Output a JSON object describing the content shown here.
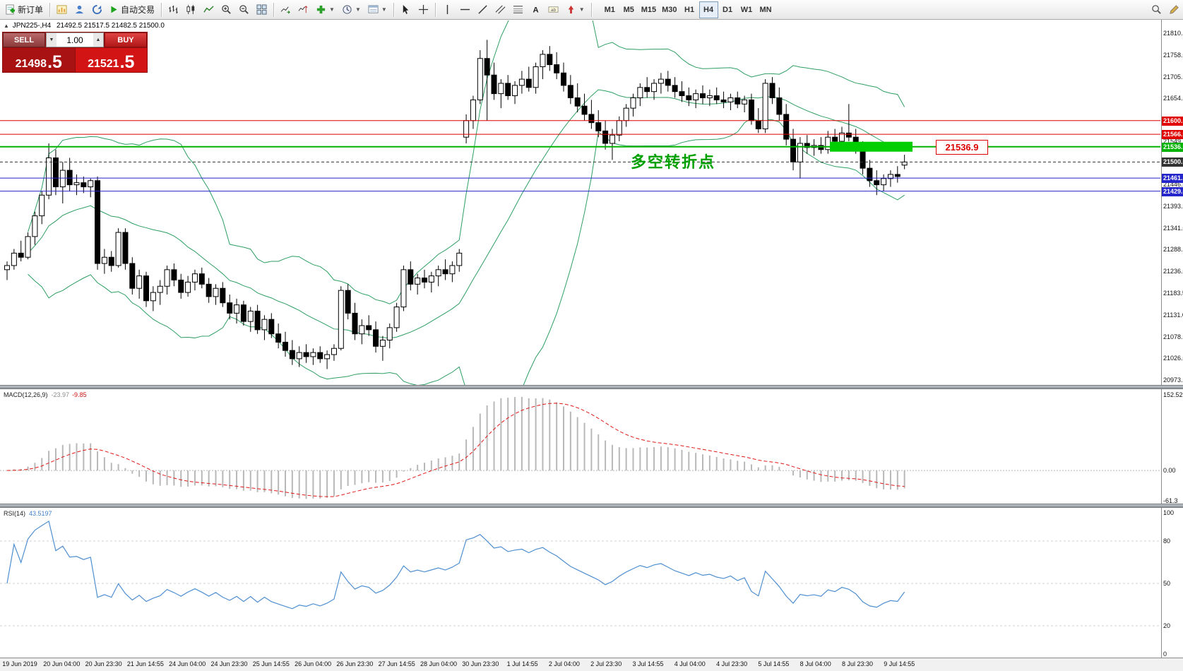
{
  "toolbar": {
    "new_order": "新订单",
    "autotrading": "自动交易",
    "timeframes": [
      "M1",
      "M5",
      "M15",
      "M30",
      "H1",
      "H4",
      "D1",
      "W1",
      "MN"
    ],
    "active_timeframe": "H4"
  },
  "header": {
    "symbol": "JPN225-,H4",
    "ohlc": "21492.5 21517.5 21482.5 21500.0"
  },
  "trade_panel": {
    "sell_label": "SELL",
    "buy_label": "BUY",
    "volume": "1.00",
    "sell_price": "21498",
    "sell_price_big": ".5",
    "buy_price": "21521",
    "buy_price_big": ".5"
  },
  "annotations": {
    "note_text": "多空转折点",
    "note_color": "#00a000",
    "price_tag": "21536.9",
    "highlight_rect": {
      "x": 1175,
      "width": 117,
      "price": 21536.9,
      "height": 14,
      "color": "#00ce00"
    }
  },
  "price_axis": {
    "ticks": [
      "21810.5",
      "21758.0",
      "21705.5",
      "21654.5",
      "21549.5",
      "21446.0",
      "21393.5",
      "21341.0",
      "21288.5",
      "21236.0",
      "21183.5",
      "21131.0",
      "21078.5",
      "21026.0",
      "20973.5"
    ]
  },
  "time_axis": {
    "labels": [
      "19 Jun 2019",
      "20 Jun 04:00",
      "20 Jun 23:30",
      "21 Jun 14:55",
      "24 Jun 04:00",
      "24 Jun 23:30",
      "25 Jun 14:55",
      "26 Jun 04:00",
      "26 Jun 23:30",
      "27 Jun 14:55",
      "28 Jun 04:00",
      "30 Jun 23:30",
      "1 Jul 14:55",
      "2 Jul 04:00",
      "2 Jul 23:30",
      "3 Jul 14:55",
      "4 Jul 04:00",
      "4 Jul 23:30",
      "5 Jul 14:55",
      "8 Jul 04:00",
      "8 Jul 23:30",
      "9 Jul 14:55"
    ]
  },
  "panels": {
    "macd_label": "MACD(12,26,9)",
    "macd_value": "-23.97",
    "macd_signal_value": "-9.85",
    "rsi_label": "RSI(14)",
    "rsi_value": "43.5197"
  },
  "chart_data": [
    {
      "type": "candlestick",
      "title": "JPN225-,H4",
      "timeframe": "H4",
      "open": 21492.5,
      "high": 21517.5,
      "low": 21482.5,
      "close": 21500.0,
      "ylim": [
        20960,
        21840
      ],
      "overlays": [
        {
          "name": "Bollinger Bands",
          "period": 20,
          "deviation": 2,
          "color": "#2e9e63"
        }
      ],
      "horizontal_levels": [
        {
          "label": "21600.0",
          "value": 21600.0,
          "color": "#e00000",
          "width": 1
        },
        {
          "label": "21566.9",
          "value": 21566.9,
          "color": "#e00000",
          "width": 1
        },
        {
          "label": "21536.9",
          "value": 21536.9,
          "color": "#00b300",
          "width": 2
        },
        {
          "label": "21500.0",
          "value": 21500.0,
          "color": "#333333",
          "width": 1,
          "dash": "4 3"
        },
        {
          "label": "21461.1",
          "value": 21461.1,
          "color": "#2525cc",
          "width": 1
        },
        {
          "label": "21429.6",
          "value": 21429.6,
          "color": "#2525cc",
          "width": 1
        }
      ],
      "candles": [
        [
          21240,
          21260,
          21215,
          21250
        ],
        [
          21250,
          21290,
          21240,
          21280
        ],
        [
          21280,
          21310,
          21260,
          21270
        ],
        [
          21270,
          21330,
          21265,
          21320
        ],
        [
          21320,
          21380,
          21300,
          21370
        ],
        [
          21370,
          21430,
          21350,
          21420
        ],
        [
          21420,
          21545,
          21410,
          21510
        ],
        [
          21510,
          21530,
          21420,
          21440
        ],
        [
          21440,
          21500,
          21400,
          21480
        ],
        [
          21480,
          21510,
          21430,
          21445
        ],
        [
          21445,
          21470,
          21420,
          21450
        ],
        [
          21450,
          21465,
          21425,
          21440
        ],
        [
          21440,
          21460,
          21415,
          21455
        ],
        [
          21455,
          21465,
          21240,
          21255
        ],
        [
          21255,
          21290,
          21230,
          21270
        ],
        [
          21270,
          21285,
          21235,
          21250
        ],
        [
          21250,
          21340,
          21245,
          21330
        ],
        [
          21330,
          21340,
          21240,
          21255
        ],
        [
          21255,
          21270,
          21180,
          21195
        ],
        [
          21195,
          21240,
          21170,
          21225
        ],
        [
          21225,
          21235,
          21150,
          21165
        ],
        [
          21165,
          21200,
          21140,
          21185
        ],
        [
          21185,
          21215,
          21155,
          21200
        ],
        [
          21200,
          21250,
          21180,
          21240
        ],
        [
          21240,
          21255,
          21200,
          21215
        ],
        [
          21215,
          21230,
          21170,
          21185
        ],
        [
          21185,
          21225,
          21175,
          21210
        ],
        [
          21210,
          21240,
          21190,
          21230
        ],
        [
          21230,
          21245,
          21195,
          21205
        ],
        [
          21205,
          21220,
          21160,
          21175
        ],
        [
          21175,
          21205,
          21155,
          21195
        ],
        [
          21195,
          21210,
          21150,
          21160
        ],
        [
          21160,
          21180,
          21120,
          21135
        ],
        [
          21135,
          21170,
          21110,
          21155
        ],
        [
          21155,
          21165,
          21105,
          21115
        ],
        [
          21115,
          21150,
          21090,
          21140
        ],
        [
          21140,
          21155,
          21085,
          21095
        ],
        [
          21095,
          21130,
          21070,
          21120
        ],
        [
          21120,
          21135,
          21075,
          21085
        ],
        [
          21085,
          21110,
          21050,
          21065
        ],
        [
          21065,
          21090,
          21030,
          21045
        ],
        [
          21045,
          21070,
          21010,
          21025
        ],
        [
          21025,
          21055,
          21005,
          21040
        ],
        [
          21040,
          21060,
          21015,
          21030
        ],
        [
          21030,
          21050,
          21010,
          21040
        ],
        [
          21040,
          21055,
          21015,
          21025
        ],
        [
          21025,
          21045,
          21000,
          21035
        ],
        [
          21035,
          21060,
          21020,
          21050
        ],
        [
          21050,
          21200,
          21045,
          21190
        ],
        [
          21190,
          21205,
          21120,
          21135
        ],
        [
          21135,
          21160,
          21070,
          21085
        ],
        [
          21085,
          21120,
          21060,
          21105
        ],
        [
          21105,
          21130,
          21080,
          21095
        ],
        [
          21095,
          21115,
          21040,
          21055
        ],
        [
          21055,
          21080,
          21020,
          21070
        ],
        [
          21070,
          21110,
          21050,
          21100
        ],
        [
          21100,
          21160,
          21090,
          21150
        ],
        [
          21150,
          21250,
          21140,
          21240
        ],
        [
          21240,
          21260,
          21190,
          21205
        ],
        [
          21205,
          21230,
          21180,
          21220
        ],
        [
          21220,
          21240,
          21195,
          21210
        ],
        [
          21210,
          21235,
          21185,
          21225
        ],
        [
          21225,
          21250,
          21200,
          21240
        ],
        [
          21240,
          21265,
          21215,
          21230
        ],
        [
          21230,
          21260,
          21210,
          21250
        ],
        [
          21250,
          21290,
          21235,
          21280
        ],
        [
          21560,
          21615,
          21545,
          21600
        ],
        [
          21600,
          21660,
          21580,
          21650
        ],
        [
          21650,
          21770,
          21640,
          21750
        ],
        [
          21750,
          21795,
          21600,
          21710
        ],
        [
          21710,
          21740,
          21650,
          21665
        ],
        [
          21665,
          21700,
          21630,
          21690
        ],
        [
          21690,
          21710,
          21650,
          21660
        ],
        [
          21660,
          21695,
          21640,
          21685
        ],
        [
          21685,
          21720,
          21665,
          21700
        ],
        [
          21700,
          21730,
          21670,
          21680
        ],
        [
          21680,
          21740,
          21665,
          21730
        ],
        [
          21730,
          21770,
          21700,
          21760
        ],
        [
          21760,
          21780,
          21720,
          21735
        ],
        [
          21735,
          21765,
          21700,
          21715
        ],
        [
          21715,
          21740,
          21670,
          21685
        ],
        [
          21685,
          21710,
          21640,
          21655
        ],
        [
          21655,
          21690,
          21620,
          21635
        ],
        [
          21635,
          21665,
          21600,
          21615
        ],
        [
          21615,
          21650,
          21580,
          21595
        ],
        [
          21595,
          21625,
          21560,
          21575
        ],
        [
          21575,
          21600,
          21530,
          21545
        ],
        [
          21545,
          21580,
          21505,
          21565
        ],
        [
          21565,
          21610,
          21550,
          21600
        ],
        [
          21600,
          21640,
          21585,
          21630
        ],
        [
          21630,
          21665,
          21610,
          21655
        ],
        [
          21655,
          21690,
          21635,
          21680
        ],
        [
          21680,
          21705,
          21655,
          21670
        ],
        [
          21670,
          21700,
          21650,
          21690
        ],
        [
          21690,
          21715,
          21665,
          21700
        ],
        [
          21700,
          21720,
          21670,
          21685
        ],
        [
          21685,
          21705,
          21655,
          21670
        ],
        [
          21670,
          21695,
          21645,
          21660
        ],
        [
          21660,
          21680,
          21635,
          21650
        ],
        [
          21650,
          21675,
          21630,
          21665
        ],
        [
          21665,
          21685,
          21640,
          21655
        ],
        [
          21655,
          21675,
          21635,
          21660
        ],
        [
          21660,
          21680,
          21640,
          21650
        ],
        [
          21650,
          21670,
          21630,
          21645
        ],
        [
          21645,
          21665,
          21625,
          21655
        ],
        [
          21655,
          21670,
          21630,
          21640
        ],
        [
          21640,
          21660,
          21620,
          21650
        ],
        [
          21650,
          21665,
          21590,
          21600
        ],
        [
          21600,
          21630,
          21570,
          21580
        ],
        [
          21580,
          21700,
          21570,
          21690
        ],
        [
          21690,
          21705,
          21640,
          21655
        ],
        [
          21655,
          21680,
          21600,
          21615
        ],
        [
          21615,
          21640,
          21540,
          21555
        ],
        [
          21555,
          21580,
          21480,
          21500
        ],
        [
          21500,
          21560,
          21460,
          21545
        ],
        [
          21545,
          21565,
          21520,
          21535
        ],
        [
          21535,
          21555,
          21515,
          21540
        ],
        [
          21540,
          21560,
          21520,
          21530
        ],
        [
          21530,
          21575,
          21520,
          21560
        ],
        [
          21560,
          21580,
          21540,
          21550
        ],
        [
          21550,
          21585,
          21535,
          21570
        ],
        [
          21570,
          21640,
          21550,
          21560
        ],
        [
          21560,
          21580,
          21520,
          21535
        ],
        [
          21535,
          21550,
          21470,
          21485
        ],
        [
          21485,
          21505,
          21440,
          21455
        ],
        [
          21455,
          21480,
          21420,
          21445
        ],
        [
          21445,
          21470,
          21430,
          21460
        ],
        [
          21460,
          21480,
          21440,
          21470
        ],
        [
          21470,
          21490,
          21450,
          21465
        ],
        [
          21492.5,
          21517.5,
          21482.5,
          21500
        ]
      ]
    },
    {
      "type": "bar",
      "name": "MACD(12,26,9)",
      "display_values": "-23.97 -9.85",
      "scale_labels": [
        "152.52",
        "0.00",
        "-61.3"
      ],
      "histogram_color": "#b8b8b8",
      "signal_color": "#e01818"
    },
    {
      "type": "line",
      "name": "RSI(14)",
      "display_value": "43.5197",
      "scale_labels": [
        "100",
        "80",
        "50",
        "20",
        "0"
      ],
      "line_color": "#4f8fd0"
    }
  ]
}
